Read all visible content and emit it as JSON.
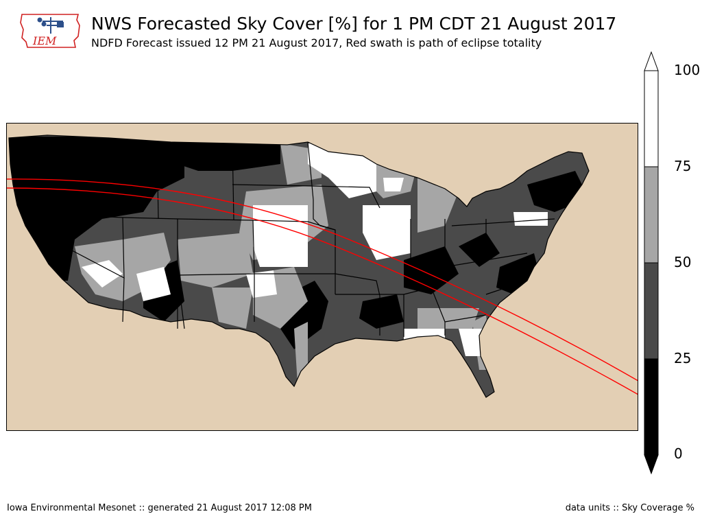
{
  "header": {
    "title": "NWS Forecasted Sky Cover [%] for 1 PM CDT 21 August 2017",
    "subtitle": "NDFD Forecast issued 12 PM 21 August 2017, Red swath is path of eclipse totality"
  },
  "logo": {
    "text": "IEM"
  },
  "colorbar": {
    "levels": [
      "0",
      "25",
      "50",
      "75",
      "100"
    ],
    "colors": [
      "#000000",
      "#4a4a4a",
      "#a6a6a6",
      "#ffffff"
    ]
  },
  "map": {
    "ocean_color": "#e3cfb4",
    "swath_color": "#ff0000"
  },
  "footer": {
    "left": "Iowa Environmental Mesonet :: generated 21 August 2017 12:08 PM",
    "right": "data units :: Sky Coverage %"
  }
}
